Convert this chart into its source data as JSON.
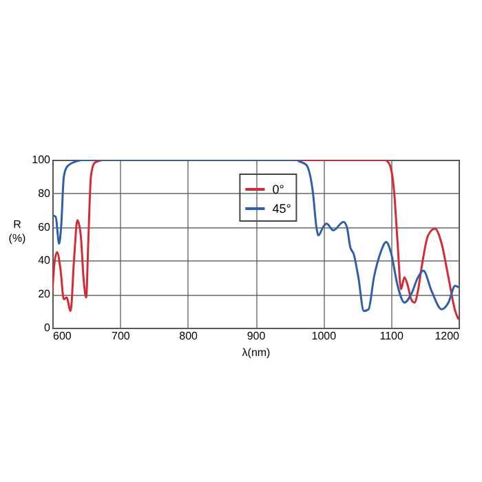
{
  "chart_data": {
    "type": "line",
    "xlabel": "λ(nm)",
    "ylabel": "R (%)",
    "xlim": [
      600,
      1200
    ],
    "xticks": [
      600,
      700,
      800,
      900,
      1000,
      1100,
      1200
    ],
    "ylim": [
      0,
      100
    ],
    "yticks": [
      0,
      20,
      40,
      60,
      80,
      100
    ],
    "grid": true,
    "legend": "top",
    "marker": "none",
    "line_style": "solid",
    "series": [
      {
        "name": "0°",
        "color": "#d42a36",
        "x": [
          600,
          603,
          607,
          612,
          617,
          621,
          627,
          632,
          637,
          642,
          646,
          650,
          653,
          657,
          662,
          670,
          680,
          1090,
          1095,
          1100,
          1105,
          1110,
          1115,
          1120,
          1125,
          1130,
          1135,
          1140,
          1145,
          1155,
          1165,
          1175,
          1185,
          1195,
          1200
        ],
        "values": [
          21,
          38,
          45,
          35,
          17,
          18,
          10,
          40,
          64,
          55,
          30,
          18,
          50,
          90,
          98,
          99.5,
          100,
          100,
          99,
          95,
          80,
          50,
          23,
          30,
          25,
          17,
          15,
          22,
          35,
          55,
          59,
          50,
          30,
          10,
          5
        ]
      },
      {
        "name": "45°",
        "color": "#2f5fa8",
        "x": [
          600,
          605,
          610,
          613,
          617,
          622,
          635,
          650,
          960,
          965,
          975,
          985,
          990,
          993,
          1000,
          1005,
          1015,
          1030,
          1035,
          1040,
          1045,
          1052,
          1060,
          1067,
          1075,
          1085,
          1093,
          1100,
          1110,
          1120,
          1130,
          1140,
          1148,
          1160,
          1175,
          1185,
          1195,
          1200
        ],
        "values": [
          67,
          66,
          50,
          60,
          90,
          96,
          99,
          100,
          100,
          99,
          97,
          80,
          60,
          55,
          60,
          62,
          58,
          63,
          60,
          48,
          44,
          30,
          10,
          11,
          30,
          45,
          51,
          45,
          25,
          15,
          20,
          30,
          34,
          22,
          11,
          15,
          25,
          24
        ]
      }
    ]
  }
}
